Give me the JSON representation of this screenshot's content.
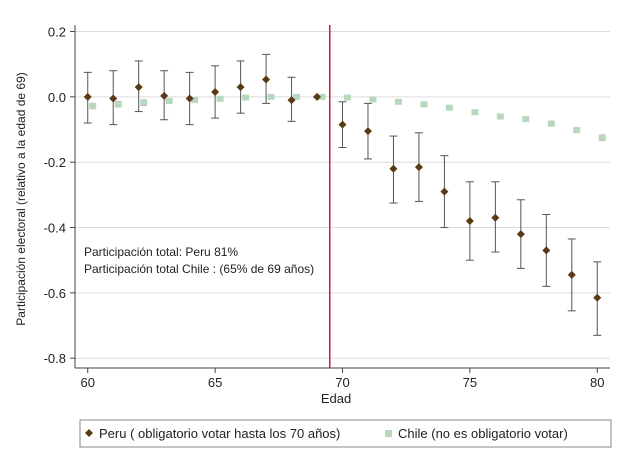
{
  "chart_data": {
    "type": "scatter",
    "xlabel": "Edad",
    "ylabel": "Participación electoral (relativo a la edad de 69)",
    "xlim": [
      59.5,
      80.5
    ],
    "ylim": [
      -0.83,
      0.22
    ],
    "x_ticks": [
      60,
      65,
      70,
      75,
      80
    ],
    "y_ticks": [
      0.2,
      0.0,
      -0.2,
      -0.4,
      -0.6,
      -0.8
    ],
    "x_tick_labels": [
      "60",
      "65",
      "70",
      "75",
      "80"
    ],
    "y_tick_labels": [
      "0.2",
      "0.0",
      "-0.2",
      "-0.4",
      "-0.6",
      "-0.8"
    ],
    "grid": "horizontal",
    "reference_line_x": 69.5,
    "annotations": [
      "Participación total: Peru 81%",
      "Participación total Chile : (65% de 69 años)"
    ],
    "legend_position": "bottom",
    "series": [
      {
        "name": "Peru ( obligatorio votar hasta los 70 años)",
        "color": "#5a3a14",
        "marker": "diamond",
        "x": [
          60,
          61,
          62,
          63,
          64,
          65,
          66,
          67,
          68,
          69,
          70,
          71,
          72,
          73,
          74,
          75,
          76,
          77,
          78,
          79,
          80
        ],
        "y": [
          0.0,
          -0.005,
          0.03,
          0.003,
          -0.005,
          0.015,
          0.03,
          0.053,
          -0.01,
          0.0,
          -0.085,
          -0.105,
          -0.22,
          -0.215,
          -0.29,
          -0.38,
          -0.37,
          -0.42,
          -0.47,
          -0.545,
          -0.615
        ],
        "ci_low": [
          -0.08,
          -0.085,
          -0.045,
          -0.07,
          -0.085,
          -0.065,
          -0.05,
          -0.02,
          -0.075,
          0.0,
          -0.155,
          -0.19,
          -0.325,
          -0.32,
          -0.4,
          -0.5,
          -0.475,
          -0.525,
          -0.58,
          -0.655,
          -0.73
        ],
        "ci_high": [
          0.075,
          0.08,
          0.11,
          0.08,
          0.075,
          0.095,
          0.11,
          0.13,
          0.06,
          0.0,
          -0.015,
          -0.02,
          -0.12,
          -0.11,
          -0.18,
          -0.26,
          -0.26,
          -0.315,
          -0.36,
          -0.435,
          -0.505
        ]
      },
      {
        "name": "Chile (no es obligatorio votar)",
        "color": "#b7d8bd",
        "marker": "square",
        "x": [
          60,
          61,
          62,
          63,
          64,
          65,
          66,
          67,
          68,
          69,
          70,
          71,
          72,
          73,
          74,
          75,
          76,
          77,
          78,
          79,
          80
        ],
        "y": [
          -0.028,
          -0.022,
          -0.018,
          -0.013,
          -0.01,
          -0.006,
          -0.002,
          0.0,
          0.0,
          0.0,
          -0.002,
          -0.008,
          -0.015,
          -0.023,
          -0.033,
          -0.047,
          -0.06,
          -0.068,
          -0.082,
          -0.102,
          -0.125
        ],
        "ci_low": [
          -0.036,
          -0.03,
          -0.026,
          -0.02,
          -0.017,
          -0.012,
          -0.008,
          -0.005,
          -0.004,
          0.0,
          -0.007,
          -0.013,
          -0.021,
          -0.029,
          -0.039,
          -0.053,
          -0.066,
          -0.074,
          -0.089,
          -0.109,
          -0.133
        ],
        "ci_high": [
          -0.02,
          -0.014,
          -0.01,
          -0.006,
          -0.003,
          0.0,
          0.004,
          0.005,
          0.004,
          0.0,
          0.003,
          -0.003,
          -0.009,
          -0.017,
          -0.027,
          -0.041,
          -0.054,
          -0.062,
          -0.075,
          -0.095,
          -0.117
        ]
      }
    ]
  },
  "colors": {
    "grid": "#dcdcdc",
    "axis": "#444444",
    "ci": "#555555",
    "reference_line": "#c41e3a"
  }
}
